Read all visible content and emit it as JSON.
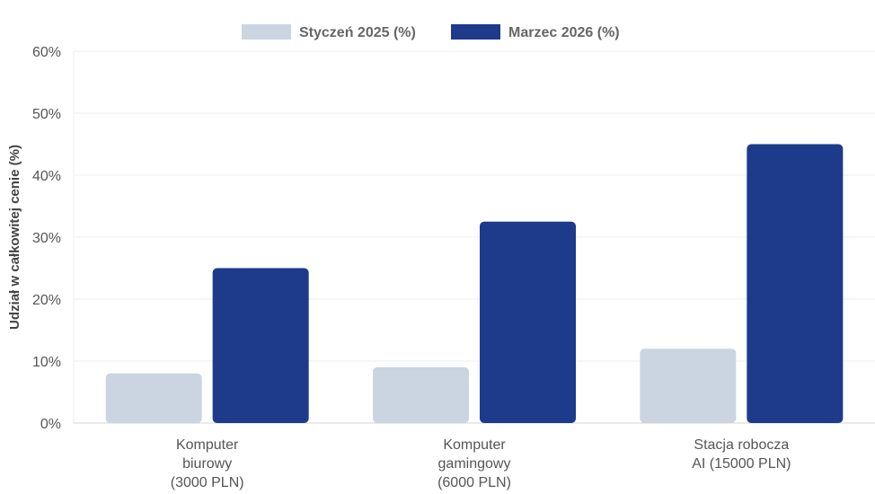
{
  "chart_data": {
    "type": "bar",
    "categories": [
      [
        "Komputer",
        "biurowy",
        "(3000 PLN)"
      ],
      [
        "Komputer",
        "gamingowy",
        "(6000 PLN)"
      ],
      [
        "Stacja robocza",
        "AI (15000 PLN)"
      ]
    ],
    "series": [
      {
        "name": "Styczeń 2025 (%)",
        "values": [
          8,
          9,
          12
        ],
        "color": "#cbd5e1"
      },
      {
        "name": "Marzec 2026 (%)",
        "values": [
          25,
          32.5,
          45
        ],
        "color": "#1e3a8a"
      }
    ],
    "ylabel": "Udział w całkowitej cenie (%)",
    "ylim": [
      0,
      60
    ],
    "yticks": [
      "0%",
      "10%",
      "20%",
      "30%",
      "40%",
      "50%",
      "60%"
    ],
    "grid": true,
    "legend_position": "top-center"
  }
}
